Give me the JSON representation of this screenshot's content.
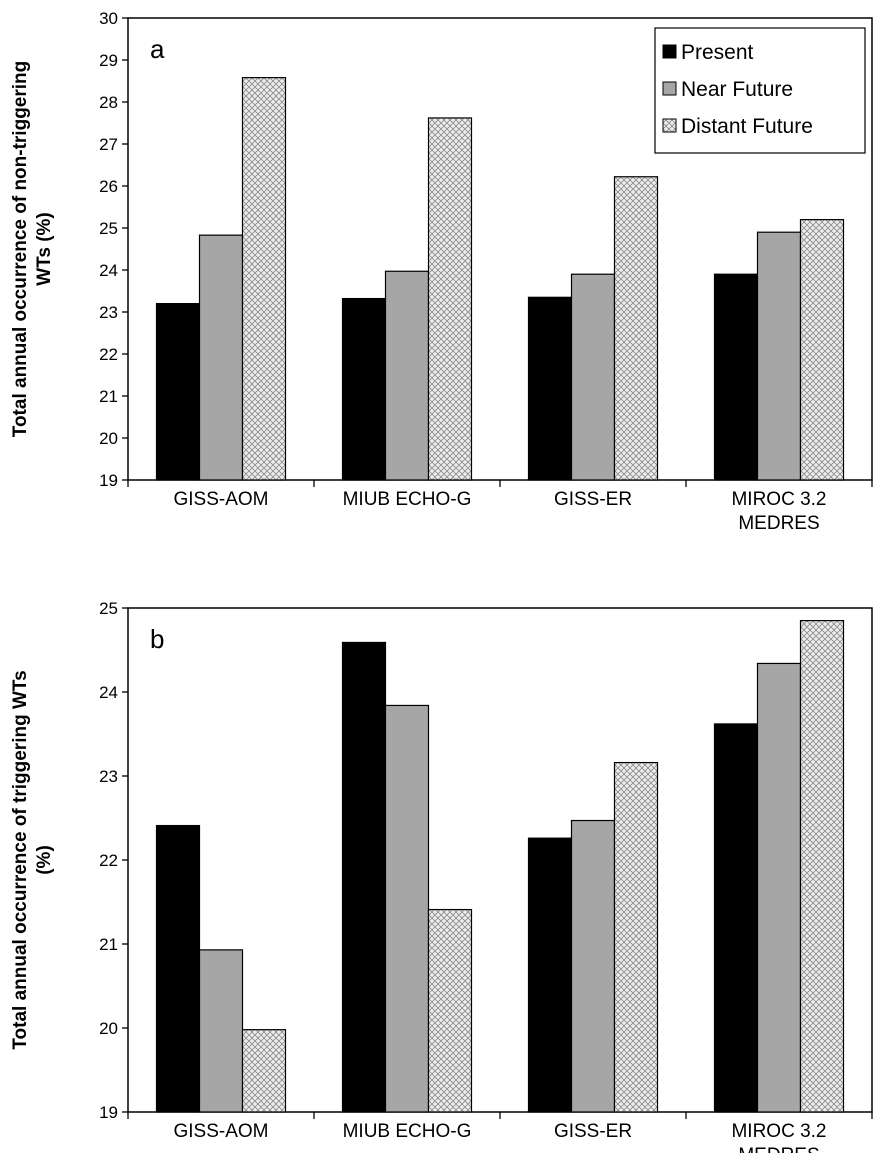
{
  "chart_data": [
    {
      "type": "bar",
      "panel_label": "a",
      "ylabel_lines": [
        "Total annual occurrence of non-triggering",
        "WTs (%)"
      ],
      "ylim": [
        19,
        30
      ],
      "yticks": [
        19,
        20,
        21,
        22,
        23,
        24,
        25,
        26,
        27,
        28,
        29,
        30
      ],
      "categories": [
        [
          "GISS-AOM"
        ],
        [
          "MIUB ECHO-G"
        ],
        [
          "GISS-ER"
        ],
        [
          "MIROC 3.2",
          "MEDRES"
        ]
      ],
      "series": [
        {
          "name": "Present",
          "values": [
            23.2,
            23.32,
            23.35,
            23.9
          ]
        },
        {
          "name": "Near Future",
          "values": [
            24.83,
            23.97,
            23.9,
            24.9
          ]
        },
        {
          "name": "Distant Future",
          "values": [
            28.58,
            27.62,
            26.22,
            25.2
          ]
        }
      ],
      "legend": {
        "placement": "top-right",
        "entries": [
          "Present",
          "Near Future",
          "Distant Future"
        ]
      },
      "grid": false
    },
    {
      "type": "bar",
      "panel_label": "b",
      "ylabel_lines": [
        "Total annual occurrence of triggering WTs",
        "(%)"
      ],
      "ylim": [
        19,
        25
      ],
      "yticks": [
        19,
        20,
        21,
        22,
        23,
        24,
        25
      ],
      "categories": [
        [
          "GISS-AOM"
        ],
        [
          "MIUB ECHO-G"
        ],
        [
          "GISS-ER"
        ],
        [
          "MIROC 3.2",
          "MEDRES"
        ]
      ],
      "series": [
        {
          "name": "Present",
          "values": [
            22.41,
            24.59,
            22.26,
            23.62
          ]
        },
        {
          "name": "Near Future",
          "values": [
            20.93,
            23.84,
            22.47,
            24.34
          ]
        },
        {
          "name": "Distant Future",
          "values": [
            19.98,
            21.41,
            23.16,
            24.85
          ]
        }
      ],
      "grid": false
    }
  ],
  "colors": {
    "Present": "#000000",
    "Near Future": "#a6a6a6",
    "Distant Future": "#ececec",
    "hatch": "#7a7a7a",
    "axis": "#000000"
  }
}
